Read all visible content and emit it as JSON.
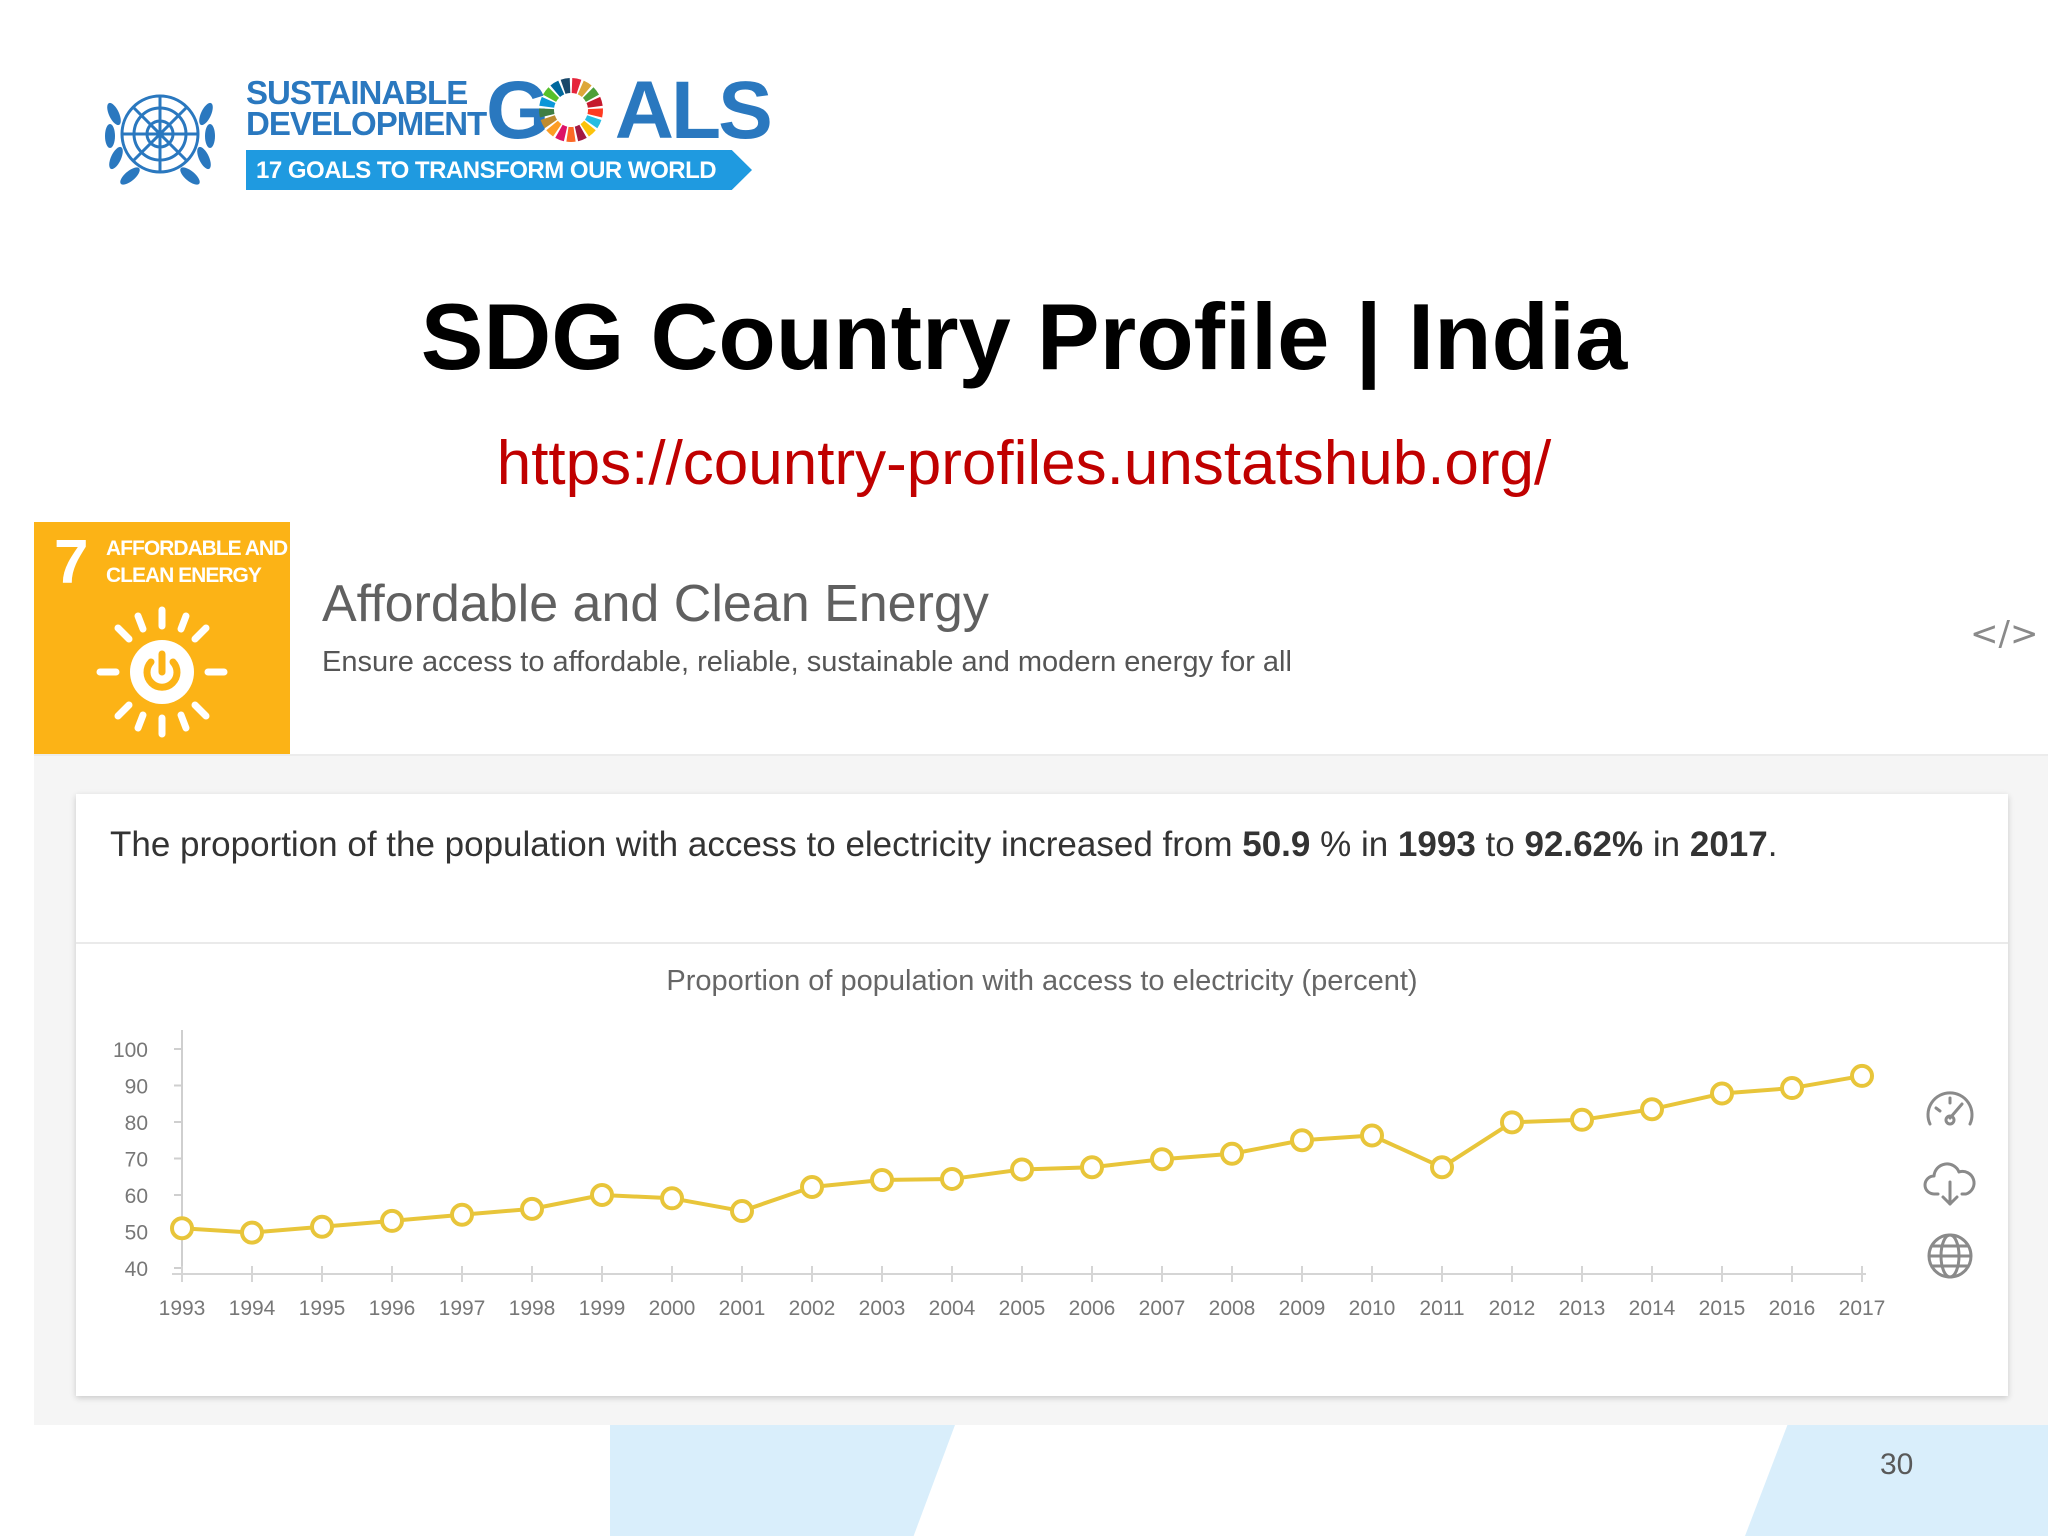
{
  "logo": {
    "line1": "SUSTAINABLE",
    "line2": "DEVELOPMENT",
    "goals_prefix": "G",
    "goals_suffix": "ALS",
    "banner": "17 GOALS TO TRANSFORM OUR WORLD",
    "wheel_colors": [
      "#e5243b",
      "#dda63a",
      "#4c9f38",
      "#c5192d",
      "#ff3a21",
      "#26bde2",
      "#fcc30b",
      "#a21942",
      "#fd6925",
      "#dd1367",
      "#fd9d24",
      "#bf8b2e",
      "#3f7e44",
      "#0a97d9",
      "#56c02b",
      "#00689d",
      "#19486a"
    ]
  },
  "slide": {
    "title": "SDG Country Profile | India",
    "url": "https://country-profiles.unstatshub.org/",
    "page_number": "30"
  },
  "goal": {
    "number": "7",
    "tile_title_1": "AFFORDABLE AND",
    "tile_title_2": "CLEAN ENERGY",
    "tile_color": "#fcb316",
    "name": "Affordable and Clean Energy",
    "subtitle": "Ensure access to affordable, reliable, sustainable and modern energy for all",
    "embed_icon": "</>"
  },
  "summary": {
    "part1": "The proportion of the population with access to electricity increased from ",
    "value_start": "50.9",
    "part2": " % in ",
    "year_start": "1993",
    "part3": " to ",
    "value_end": "92.62%",
    "part4": " in ",
    "year_end": "2017",
    "part5": "."
  },
  "tools": [
    "gauge-icon",
    "cloud-download-icon",
    "globe-icon"
  ],
  "chart_data": {
    "type": "line",
    "title": "Proportion of population with access to electricity (percent)",
    "x": [
      "1993",
      "1994",
      "1995",
      "1996",
      "1997",
      "1998",
      "1999",
      "2000",
      "2001",
      "2002",
      "2003",
      "2004",
      "2005",
      "2006",
      "2007",
      "2008",
      "2009",
      "2010",
      "2011",
      "2012",
      "2013",
      "2014",
      "2015",
      "2016",
      "2017"
    ],
    "series": [
      {
        "values": [
          50.9,
          49.7,
          51.3,
          52.9,
          54.6,
          56.2,
          60.0,
          59.1,
          55.6,
          62.2,
          64.1,
          64.4,
          67.0,
          67.6,
          69.8,
          71.3,
          75.0,
          76.3,
          67.6,
          79.9,
          80.6,
          83.5,
          87.8,
          89.3,
          92.62
        ],
        "color": "#e8c53a"
      }
    ],
    "yticks": [
      "100",
      "90",
      "80",
      "70",
      "60",
      "50",
      "40"
    ],
    "ylim": [
      40,
      100
    ],
    "grid": false,
    "legend": "none"
  }
}
